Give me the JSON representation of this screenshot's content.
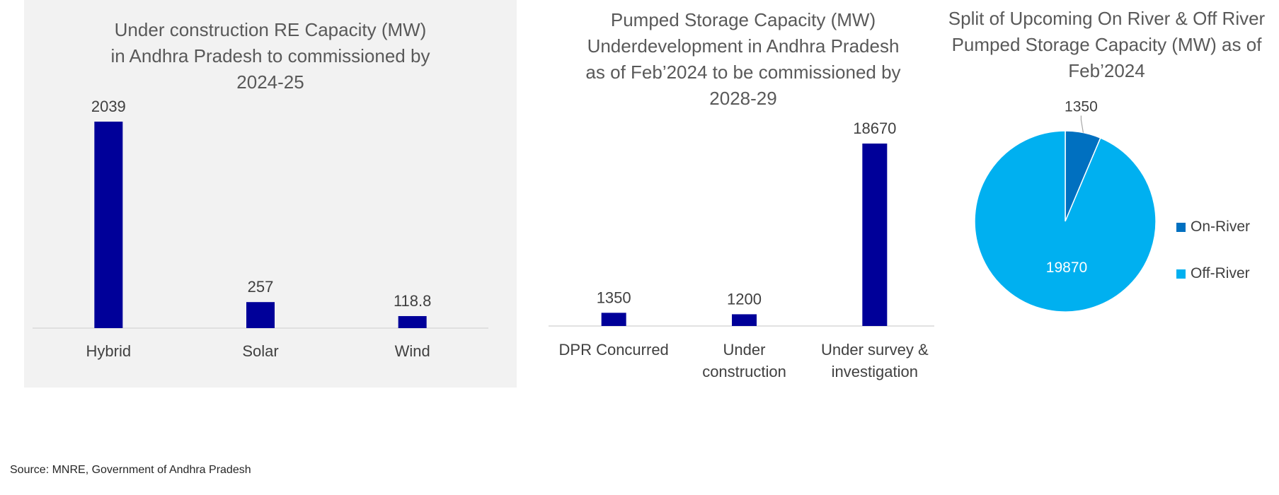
{
  "colors": {
    "bar": "#000099",
    "axis": "#d9d9d9",
    "on_river": "#0070c0",
    "off_river": "#00b0f0",
    "label_dark": "#404040",
    "label_light": "#ffffff"
  },
  "charts": [
    {
      "title": "Under construction RE Capacity (MW)\nin Andhra Pradesh to commissioned by\n2024-25"
    },
    {
      "title": "Pumped Storage Capacity (MW)\nUnderdevelopment in Andhra Pradesh\nas of Feb’2024 to be commissioned by\n2028-29"
    },
    {
      "title": "Split of Upcoming On River & Off River\nPumped Storage Capacity (MW) as of\nFeb’2024"
    }
  ],
  "chart_data": [
    {
      "type": "bar",
      "title": "Under construction RE Capacity (MW) in Andhra Pradesh to commissioned by 2024-25",
      "categories": [
        "Hybrid",
        "Solar",
        "Wind"
      ],
      "values": [
        2039,
        257,
        118.8
      ],
      "data_labels": [
        "2039",
        "257",
        "118.8"
      ],
      "ylim": [
        0,
        2039
      ],
      "grid": false,
      "legend": "none"
    },
    {
      "type": "bar",
      "title": "Pumped Storage Capacity (MW) Underdevelopment in Andhra Pradesh as of Feb’2024 to be commissioned by 2028-29",
      "categories": [
        "DPR Concurred",
        "Under construction",
        "Under survey & investigation"
      ],
      "category_lines": [
        [
          "DPR Concurred"
        ],
        [
          "Under",
          "construction"
        ],
        [
          "Under survey &",
          "investigation"
        ]
      ],
      "values": [
        1350,
        1200,
        18670
      ],
      "data_labels": [
        "1350",
        "1200",
        "18670"
      ],
      "ylim": [
        0,
        18670
      ],
      "grid": false,
      "legend": "none"
    },
    {
      "type": "pie",
      "title": "Split of Upcoming On River & Off River Pumped Storage Capacity (MW) as of Feb’2024",
      "labels": [
        "On-River",
        "Off-River"
      ],
      "values": [
        1350,
        19870
      ],
      "data_labels": [
        "1350",
        "19870"
      ],
      "legend": "right"
    }
  ],
  "source": "Source: MNRE, Government of Andhra Pradesh"
}
